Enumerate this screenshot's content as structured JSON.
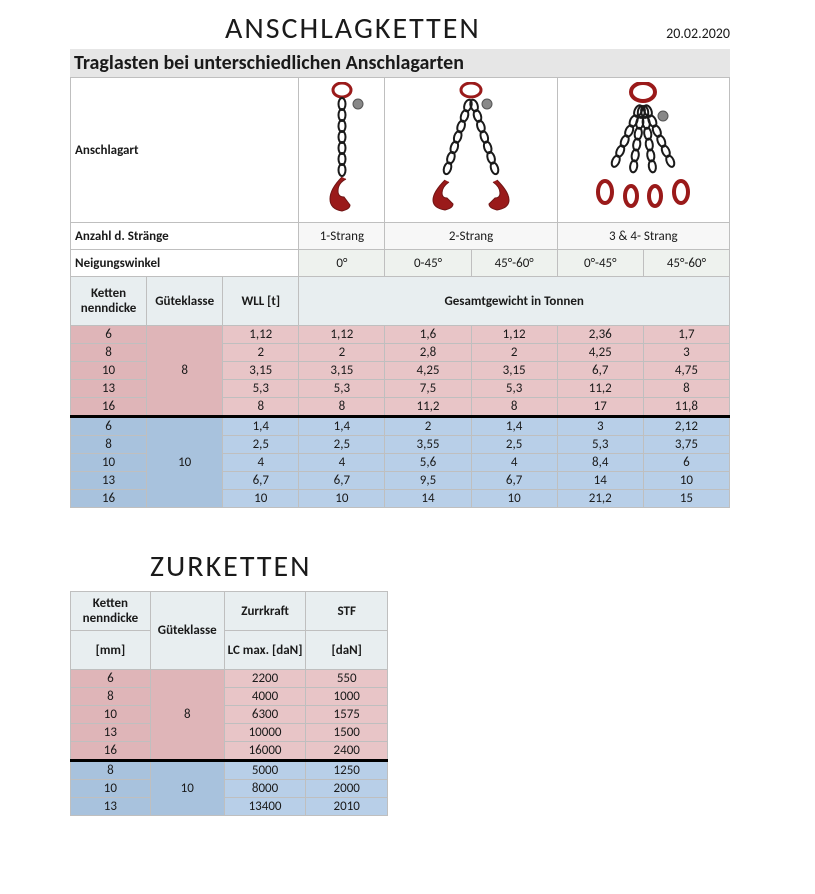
{
  "header": {
    "title": "ANSCHLAGKETTEN",
    "date": "20.02.2020",
    "subtitle": "Traglasten bei unterschiedlichen Anschlagarten"
  },
  "t1": {
    "row_anschlagart": "Anschlagart",
    "row_strands_label": "Anzahl d. Stränge",
    "strands": [
      "1-Strang",
      "2-Strang",
      "3 & 4- Strang"
    ],
    "row_angle_label": "Neigungswinkel",
    "angles": [
      "0°",
      "0-45°",
      "45°-60°",
      "0°-45°",
      "45°-60°"
    ],
    "col_headers": {
      "ketten": "Ketten nenndicke",
      "guete": "Güteklasse",
      "wll": "WLL [t]",
      "gesamt": "Gesamtgewicht in Tonnen"
    },
    "group8": {
      "guete": "8",
      "rows": [
        {
          "k": "6",
          "v": [
            "1,12",
            "1,12",
            "1,6",
            "1,12",
            "2,36",
            "1,7"
          ]
        },
        {
          "k": "8",
          "v": [
            "2",
            "2",
            "2,8",
            "2",
            "4,25",
            "3"
          ]
        },
        {
          "k": "10",
          "v": [
            "3,15",
            "3,15",
            "4,25",
            "3,15",
            "6,7",
            "4,75"
          ]
        },
        {
          "k": "13",
          "v": [
            "5,3",
            "5,3",
            "7,5",
            "5,3",
            "11,2",
            "8"
          ]
        },
        {
          "k": "16",
          "v": [
            "8",
            "8",
            "11,2",
            "8",
            "17",
            "11,8"
          ]
        }
      ]
    },
    "group10": {
      "guete": "10",
      "rows": [
        {
          "k": "6",
          "v": [
            "1,4",
            "1,4",
            "2",
            "1,4",
            "3",
            "2,12"
          ]
        },
        {
          "k": "8",
          "v": [
            "2,5",
            "2,5",
            "3,55",
            "2,5",
            "5,3",
            "3,75"
          ]
        },
        {
          "k": "10",
          "v": [
            "4",
            "4",
            "5,6",
            "4",
            "8,4",
            "6"
          ]
        },
        {
          "k": "13",
          "v": [
            "6,7",
            "6,7",
            "9,5",
            "6,7",
            "14",
            "10"
          ]
        },
        {
          "k": "16",
          "v": [
            "10",
            "10",
            "14",
            "10",
            "21,2",
            "15"
          ]
        }
      ]
    }
  },
  "t2": {
    "title": "ZURKETTEN",
    "headers": {
      "ketten": "Ketten nenndicke",
      "mm": "[mm]",
      "guete": "Güteklasse",
      "zurr": "Zurrkraft",
      "lc": "LC max. [daN]",
      "stf": "STF",
      "dan": "[daN]"
    },
    "group8": {
      "guete": "8",
      "rows": [
        {
          "k": "6",
          "lc": "2200",
          "stf": "550"
        },
        {
          "k": "8",
          "lc": "4000",
          "stf": "1000"
        },
        {
          "k": "10",
          "lc": "6300",
          "stf": "1575"
        },
        {
          "k": "13",
          "lc": "10000",
          "stf": "1500"
        },
        {
          "k": "16",
          "lc": "16000",
          "stf": "2400"
        }
      ]
    },
    "group10": {
      "guete": "10",
      "rows": [
        {
          "k": "8",
          "lc": "5000",
          "stf": "1250"
        },
        {
          "k": "10",
          "lc": "8000",
          "stf": "2000"
        },
        {
          "k": "13",
          "lc": "13400",
          "stf": "2010"
        }
      ]
    }
  },
  "colors": {
    "pink": "#e8c5c7",
    "pink_h": "#dfb5b8",
    "blue": "#b8cfe8",
    "blue_h": "#a8c2dd",
    "red": "#9a1a1a",
    "chain": "#1a1a1a"
  }
}
